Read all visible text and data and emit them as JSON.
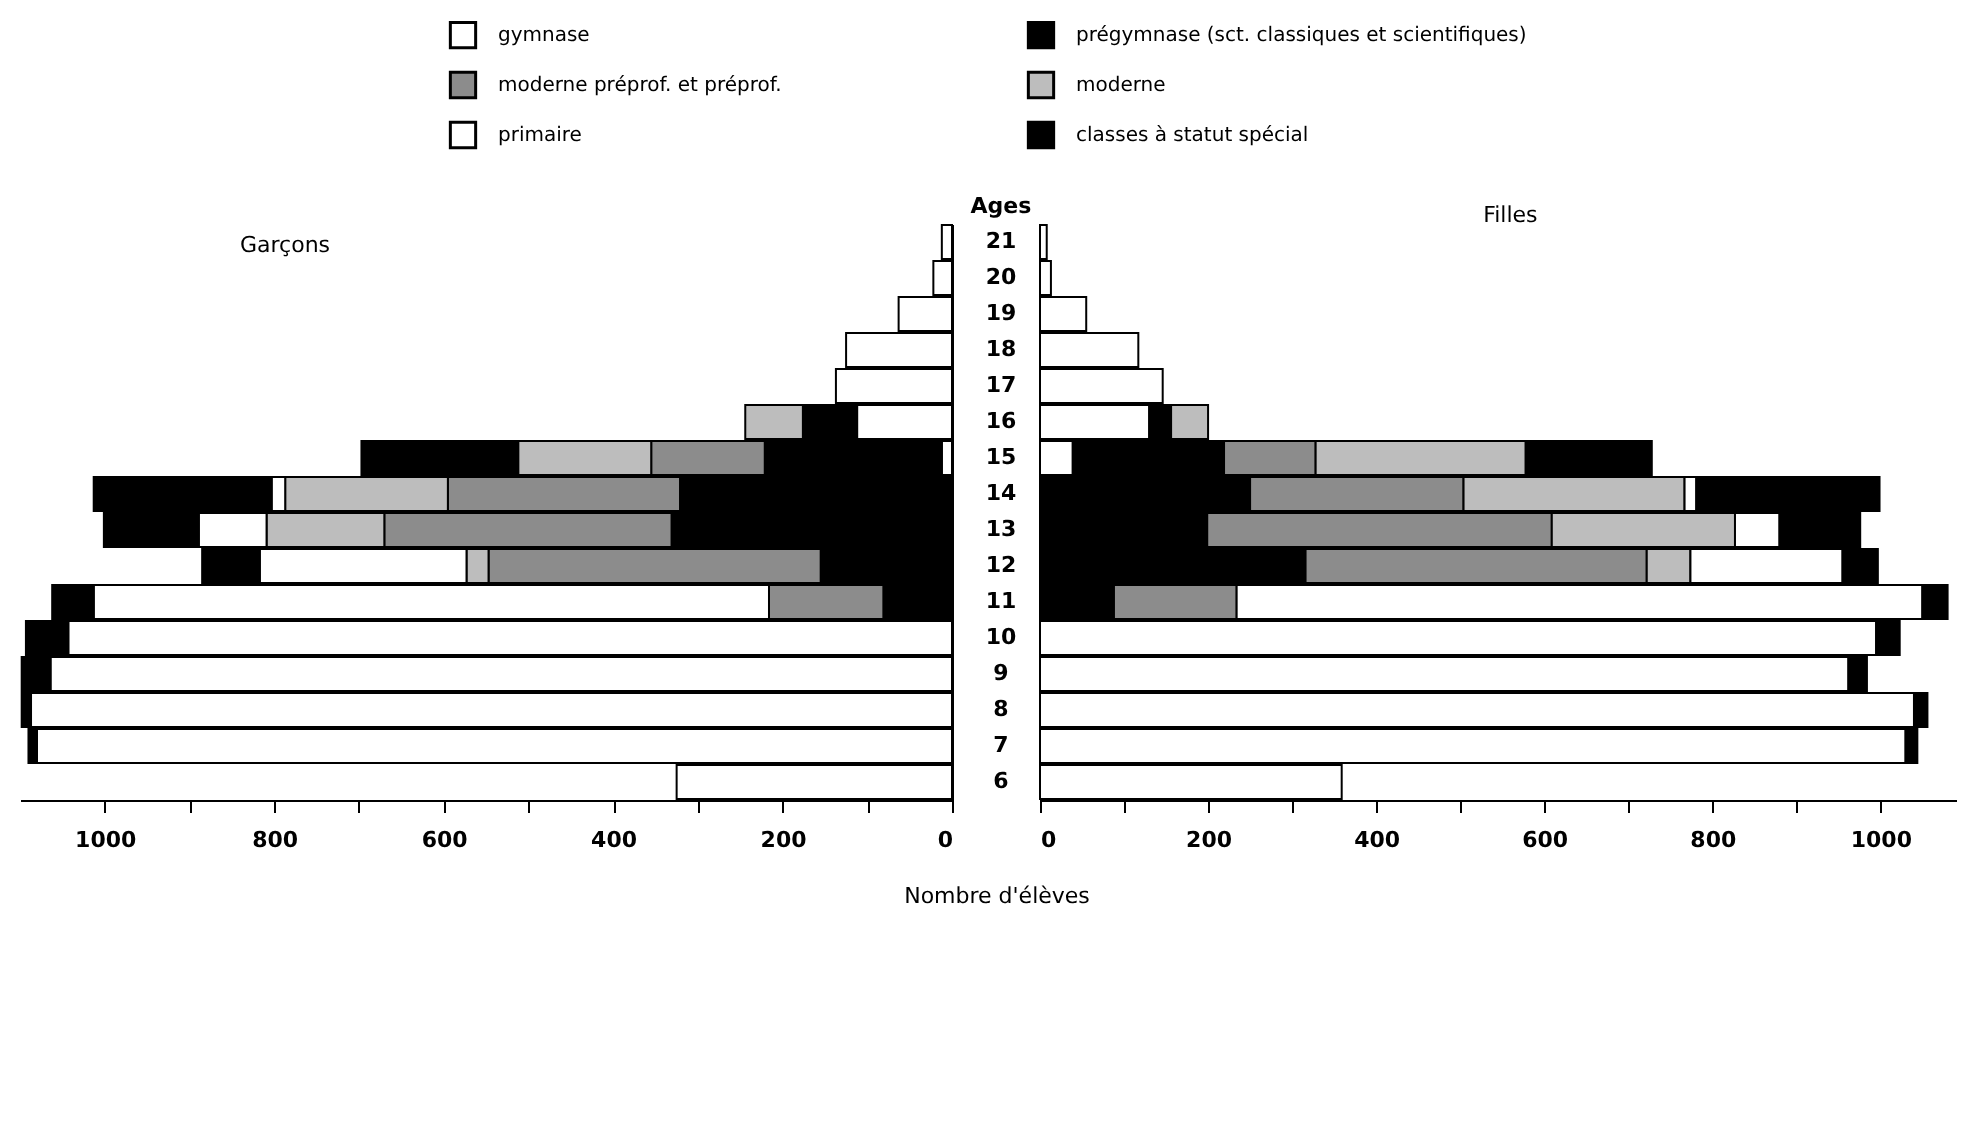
{
  "chart_data": [
    {
      "type": "bar",
      "title": "Garçons",
      "orientation": "horizontal",
      "stacked": true,
      "legend": "top",
      "tick_labels": "x",
      "categories": [
        "21",
        "20",
        "19",
        "18",
        "17",
        "16",
        "15",
        "14",
        "13",
        "12",
        "11",
        "10",
        "9",
        "8",
        "7",
        "6"
      ],
      "xlim": [
        1100,
        0
      ],
      "xticks": [
        0,
        {
          "value": 100,
          "label": null
        },
        200,
        {
          "value": 300,
          "label": null
        },
        400,
        {
          "value": 500,
          "label": null
        },
        600,
        {
          "value": 700,
          "label": null
        },
        800,
        {
          "value": 900,
          "label": null
        },
        1000
      ],
      "series": [
        {
          "name": "gymnase",
          "color": "#ffffff",
          "values": [
            12,
            22,
            63,
            125,
            137,
            112,
            12,
            null,
            null,
            null,
            null,
            null,
            null,
            null,
            null,
            null
          ]
        },
        {
          "name": "prégymnase (sct. classiques et scientifiques)",
          "color": "#000000",
          "values": [
            null,
            null,
            null,
            null,
            null,
            64,
            209,
            321,
            331,
            155,
            81,
            null,
            null,
            null,
            null,
            null
          ]
        },
        {
          "name": "moderne préprof. et préprof.",
          "color": "#8c8c8c",
          "values": [
            null,
            null,
            null,
            null,
            null,
            null,
            134,
            274,
            339,
            392,
            135,
            null,
            null,
            null,
            null,
            null
          ]
        },
        {
          "name": "moderne",
          "color": "#bdbdbd",
          "values": [
            null,
            null,
            null,
            null,
            null,
            68,
            157,
            192,
            139,
            26,
            null,
            null,
            null,
            null,
            null,
            null
          ]
        },
        {
          "name": "primaire",
          "color": "#ffffff",
          "values": [
            null,
            null,
            null,
            null,
            null,
            null,
            null,
            16,
            80,
            244,
            797,
            1043,
            1064,
            1087,
            1080,
            325
          ]
        },
        {
          "name": "classes à statut spécial",
          "color": "#000000",
          "values": [
            null,
            null,
            null,
            null,
            null,
            null,
            185,
            210,
            112,
            68,
            49,
            50,
            34,
            11,
            10,
            null
          ]
        }
      ]
    },
    {
      "type": "bar",
      "title": "Filles",
      "orientation": "horizontal",
      "stacked": true,
      "ylabel": "Ages",
      "xlabel": "Nombre d'élèves",
      "categories": [
        "21",
        "20",
        "19",
        "18",
        "17",
        "16",
        "15",
        "14",
        "13",
        "12",
        "11",
        "10",
        "9",
        "8",
        "7",
        "6"
      ],
      "xlim": [
        0,
        1090
      ],
      "xticks": [
        0,
        {
          "value": 100,
          "label": null
        },
        200,
        {
          "value": 300,
          "label": null
        },
        400,
        {
          "value": 500,
          "label": null
        },
        600,
        {
          "value": 700,
          "label": null
        },
        800,
        {
          "value": 900,
          "label": null
        },
        1000
      ],
      "series": [
        {
          "name": "gymnase",
          "color": "#ffffff",
          "values": [
            8,
            13,
            55,
            117,
            146,
            130,
            39,
            null,
            null,
            null,
            null,
            null,
            null,
            null,
            null,
            null
          ]
        },
        {
          "name": "prégymnase (sct. classiques et scientifiques)",
          "color": "#000000",
          "values": [
            null,
            null,
            null,
            null,
            null,
            26,
            180,
            250,
            199,
            316,
            88,
            null,
            null,
            null,
            null,
            null
          ]
        },
        {
          "name": "moderne préprof. et préprof.",
          "color": "#8c8c8c",
          "values": [
            null,
            null,
            null,
            null,
            null,
            null,
            109,
            254,
            410,
            406,
            146,
            null,
            null,
            null,
            null,
            null
          ]
        },
        {
          "name": "moderne",
          "color": "#bdbdbd",
          "values": [
            null,
            null,
            null,
            null,
            null,
            44,
            250,
            263,
            218,
            52,
            null,
            null,
            null,
            null,
            null,
            null
          ]
        },
        {
          "name": "primaire",
          "color": "#ffffff",
          "values": [
            null,
            null,
            null,
            null,
            null,
            null,
            null,
            14,
            53,
            181,
            816,
            995,
            962,
            1040,
            1030,
            359
          ]
        },
        {
          "name": "classes à statut spécial",
          "color": "#000000",
          "values": [
            null,
            null,
            null,
            null,
            null,
            null,
            150,
            218,
            96,
            42,
            30,
            28,
            22,
            16,
            14,
            null
          ]
        }
      ]
    }
  ]
}
